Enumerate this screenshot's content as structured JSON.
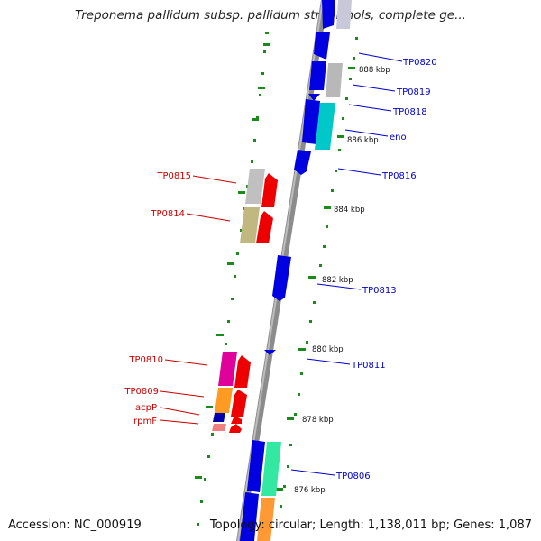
{
  "title": "Treponema pallidum subsp. pallidum str. Nichols, complete ge...",
  "footer": {
    "accession": "Accession: NC_000919",
    "stats": "Topology: circular; Length: 1,138,011 bp; Genes: 1,087"
  },
  "kbp_ticks": [
    "888 kbp",
    "886 kbp",
    "884 kbp",
    "882 kbp",
    "880 kbp",
    "878 kbp",
    "876 kbp"
  ],
  "genes": {
    "forward": [
      "TP0820",
      "TP0819",
      "TP0818",
      "eno",
      "TP0816",
      "TP0813",
      "TP0811",
      "TP0806"
    ],
    "reverse": [
      "TP0815",
      "TP0814",
      "TP0810",
      "TP0809",
      "acpP",
      "rpmF"
    ]
  },
  "colors": {
    "forward_label": "#0000cc",
    "reverse_label": "#cc0000",
    "backbone": "#8c8c8c",
    "tick": "#1a8a1a"
  }
}
